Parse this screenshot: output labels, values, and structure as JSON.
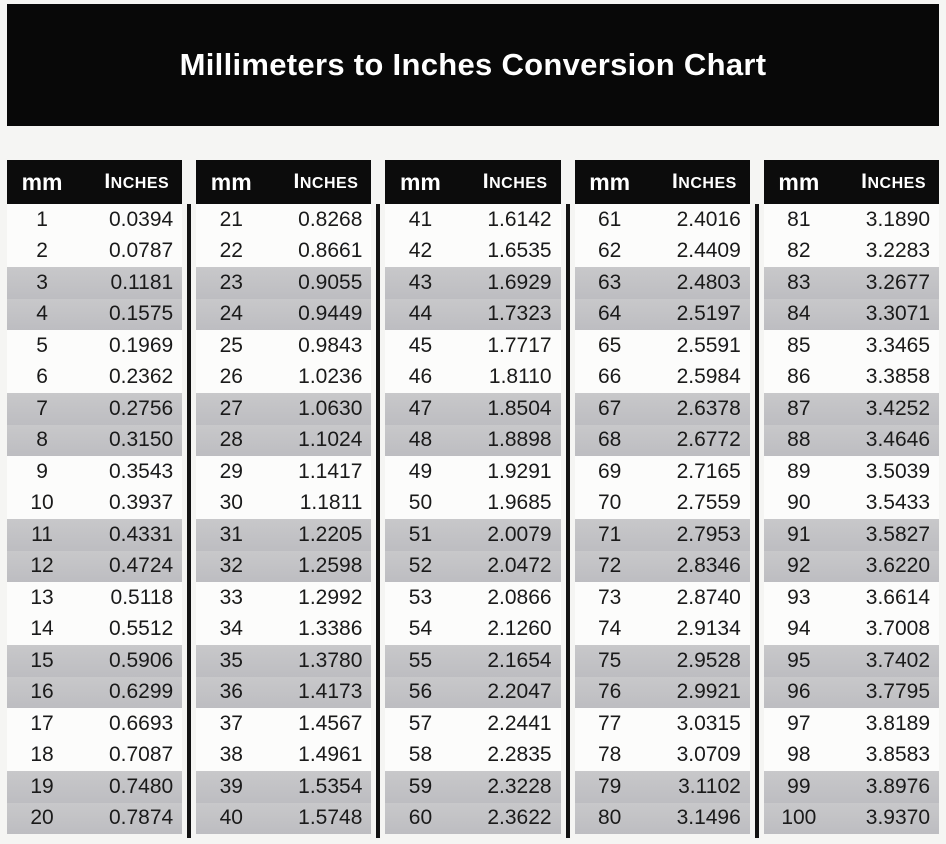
{
  "title": "Millimeters to Inches Conversion Chart",
  "column_headers": {
    "mm": "mm",
    "inches": "Inches"
  },
  "colors": {
    "page_bg": "#f5f5f3",
    "banner_bg": "#080808",
    "banner_text": "#ffffff",
    "header_bg": "#0c0c0c",
    "header_text": "#ffffff",
    "row_plain": "#fcfcfb",
    "row_shaded_top": "#c8c8ca",
    "row_shaded_bottom": "#bdbdc1",
    "divider": "#121212",
    "data_text": "#1a1a1a"
  },
  "table": {
    "shading": "alternating pairs of rows shaded gray (rows 3-4, 7-8, 11-12, 15-16, 19-20 of each group)",
    "groups": [
      {
        "mm_range": "1-20",
        "rows": [
          [
            1,
            "0.0394"
          ],
          [
            2,
            "0.0787"
          ],
          [
            3,
            "0.1181"
          ],
          [
            4,
            "0.1575"
          ],
          [
            5,
            "0.1969"
          ],
          [
            6,
            "0.2362"
          ],
          [
            7,
            "0.2756"
          ],
          [
            8,
            "0.3150"
          ],
          [
            9,
            "0.3543"
          ],
          [
            10,
            "0.3937"
          ],
          [
            11,
            "0.4331"
          ],
          [
            12,
            "0.4724"
          ],
          [
            13,
            "0.5118"
          ],
          [
            14,
            "0.5512"
          ],
          [
            15,
            "0.5906"
          ],
          [
            16,
            "0.6299"
          ],
          [
            17,
            "0.6693"
          ],
          [
            18,
            "0.7087"
          ],
          [
            19,
            "0.7480"
          ],
          [
            20,
            "0.7874"
          ]
        ]
      },
      {
        "mm_range": "21-40",
        "rows": [
          [
            21,
            "0.8268"
          ],
          [
            22,
            "0.8661"
          ],
          [
            23,
            "0.9055"
          ],
          [
            24,
            "0.9449"
          ],
          [
            25,
            "0.9843"
          ],
          [
            26,
            "1.0236"
          ],
          [
            27,
            "1.0630"
          ],
          [
            28,
            "1.1024"
          ],
          [
            29,
            "1.1417"
          ],
          [
            30,
            "1.1811"
          ],
          [
            31,
            "1.2205"
          ],
          [
            32,
            "1.2598"
          ],
          [
            33,
            "1.2992"
          ],
          [
            34,
            "1.3386"
          ],
          [
            35,
            "1.3780"
          ],
          [
            36,
            "1.4173"
          ],
          [
            37,
            "1.4567"
          ],
          [
            38,
            "1.4961"
          ],
          [
            39,
            "1.5354"
          ],
          [
            40,
            "1.5748"
          ]
        ]
      },
      {
        "mm_range": "41-60",
        "rows": [
          [
            41,
            "1.6142"
          ],
          [
            42,
            "1.6535"
          ],
          [
            43,
            "1.6929"
          ],
          [
            44,
            "1.7323"
          ],
          [
            45,
            "1.7717"
          ],
          [
            46,
            "1.8110"
          ],
          [
            47,
            "1.8504"
          ],
          [
            48,
            "1.8898"
          ],
          [
            49,
            "1.9291"
          ],
          [
            50,
            "1.9685"
          ],
          [
            51,
            "2.0079"
          ],
          [
            52,
            "2.0472"
          ],
          [
            53,
            "2.0866"
          ],
          [
            54,
            "2.1260"
          ],
          [
            55,
            "2.1654"
          ],
          [
            56,
            "2.2047"
          ],
          [
            57,
            "2.2441"
          ],
          [
            58,
            "2.2835"
          ],
          [
            59,
            "2.3228"
          ],
          [
            60,
            "2.3622"
          ]
        ]
      },
      {
        "mm_range": "61-80",
        "rows": [
          [
            61,
            "2.4016"
          ],
          [
            62,
            "2.4409"
          ],
          [
            63,
            "2.4803"
          ],
          [
            64,
            "2.5197"
          ],
          [
            65,
            "2.5591"
          ],
          [
            66,
            "2.5984"
          ],
          [
            67,
            "2.6378"
          ],
          [
            68,
            "2.6772"
          ],
          [
            69,
            "2.7165"
          ],
          [
            70,
            "2.7559"
          ],
          [
            71,
            "2.7953"
          ],
          [
            72,
            "2.8346"
          ],
          [
            73,
            "2.8740"
          ],
          [
            74,
            "2.9134"
          ],
          [
            75,
            "2.9528"
          ],
          [
            76,
            "2.9921"
          ],
          [
            77,
            "3.0315"
          ],
          [
            78,
            "3.0709"
          ],
          [
            79,
            "3.1102"
          ],
          [
            80,
            "3.1496"
          ]
        ]
      },
      {
        "mm_range": "81-100",
        "rows": [
          [
            81,
            "3.1890"
          ],
          [
            82,
            "3.2283"
          ],
          [
            83,
            "3.2677"
          ],
          [
            84,
            "3.3071"
          ],
          [
            85,
            "3.3465"
          ],
          [
            86,
            "3.3858"
          ],
          [
            87,
            "3.4252"
          ],
          [
            88,
            "3.4646"
          ],
          [
            89,
            "3.5039"
          ],
          [
            90,
            "3.5433"
          ],
          [
            91,
            "3.5827"
          ],
          [
            92,
            "3.6220"
          ],
          [
            93,
            "3.6614"
          ],
          [
            94,
            "3.7008"
          ],
          [
            95,
            "3.7402"
          ],
          [
            96,
            "3.7795"
          ],
          [
            97,
            "3.8189"
          ],
          [
            98,
            "3.8583"
          ],
          [
            99,
            "3.8976"
          ],
          [
            100,
            "3.9370"
          ]
        ]
      }
    ]
  }
}
